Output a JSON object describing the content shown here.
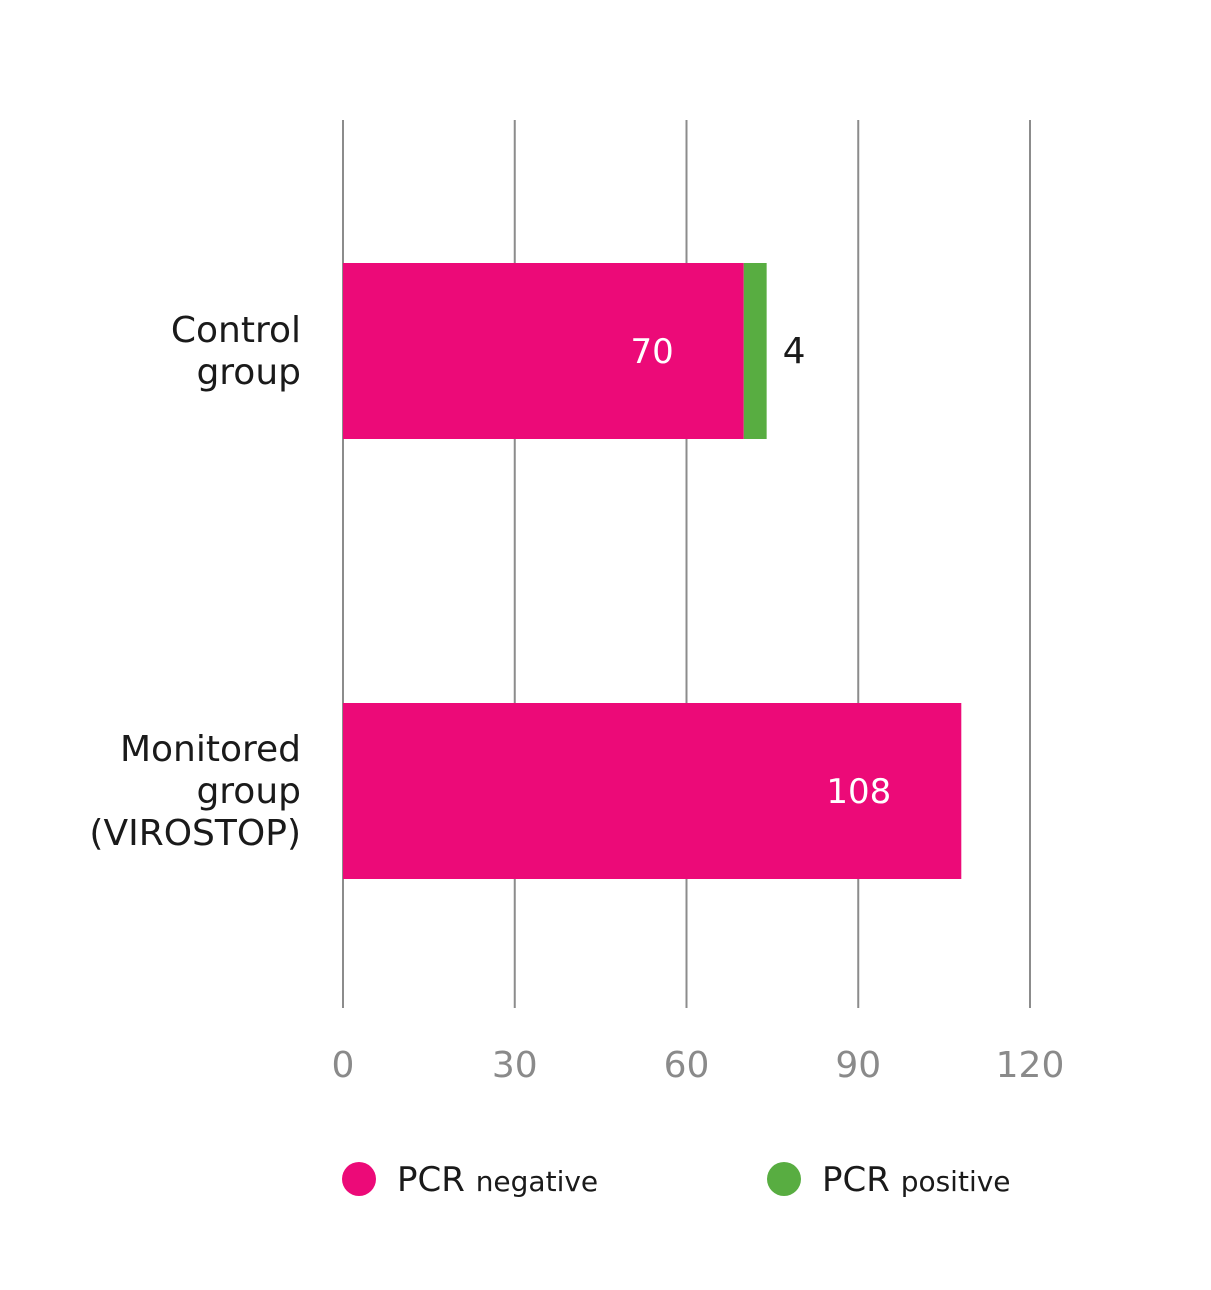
{
  "chart_data": {
    "type": "bar",
    "orientation": "horizontal",
    "stacked": true,
    "categories": [
      [
        "Control",
        "group"
      ],
      [
        "Monitored",
        "group",
        "(VIROSTOP)"
      ]
    ],
    "series": [
      {
        "name": "PCR negative",
        "color": "#ec0a78",
        "values": [
          70,
          108
        ],
        "show_value_labels": true
      },
      {
        "name": "PCR positive",
        "color": "#58ad41",
        "values": [
          4,
          0
        ],
        "show_value_labels": true
      }
    ],
    "x_ticks": [
      0,
      30,
      60,
      90,
      120
    ],
    "xlim": [
      0,
      120
    ],
    "grid": true,
    "legend_position": "bottom",
    "legend": [
      {
        "first": "PCR",
        "rest": "negative",
        "color": "#ec0a78"
      },
      {
        "first": "PCR",
        "rest": "positive",
        "color": "#58ad41"
      }
    ]
  }
}
